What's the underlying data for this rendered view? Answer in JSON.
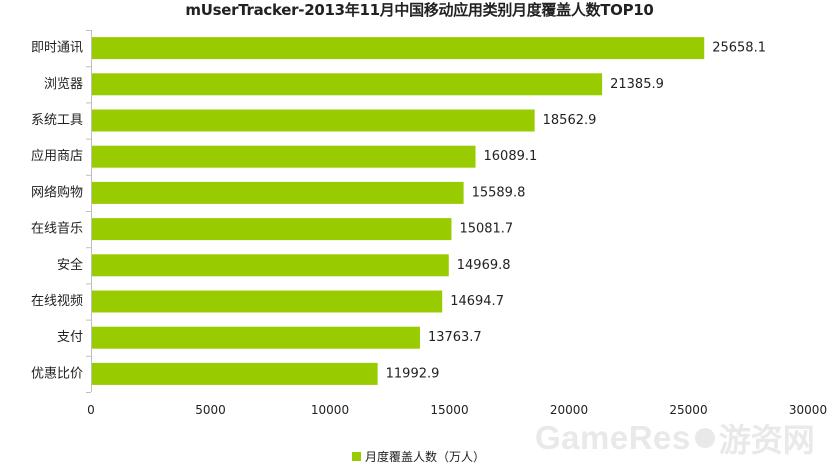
{
  "chart_data": {
    "type": "bar",
    "orientation": "horizontal",
    "title": "mUserTracker-2013年11月中国移动应用类别月度覆盖人数TOP10",
    "categories": [
      "即时通讯",
      "浏览器",
      "系统工具",
      "应用商店",
      "网络购物",
      "在线音乐",
      "安全",
      "在线视频",
      "支付",
      "优惠比价"
    ],
    "values": [
      25658.1,
      21385.9,
      18562.9,
      16089.1,
      15589.8,
      15081.7,
      14969.8,
      14694.7,
      13763.7,
      11992.9
    ],
    "value_labels": [
      "25658.1",
      "21385.9",
      "18562.9",
      "16089.1",
      "15589.8",
      "15081.7",
      "14969.8",
      "14694.7",
      "13763.7",
      "11992.9"
    ],
    "series": [
      {
        "name": "月度覆盖人数（万人）",
        "values": [
          25658.1,
          21385.9,
          18562.9,
          16089.1,
          15589.8,
          15081.7,
          14969.8,
          14694.7,
          13763.7,
          11992.9
        ]
      }
    ],
    "xlim": [
      0,
      30000
    ],
    "x_ticks": [
      0,
      5000,
      10000,
      15000,
      20000,
      25000,
      30000
    ],
    "x_tick_labels": [
      "0",
      "5000",
      "10000",
      "15000",
      "20000",
      "25000",
      "30000"
    ],
    "xlabel": "",
    "ylabel": "",
    "legend_position": "bottom",
    "grid": false,
    "bar_color": "#99cc00"
  },
  "watermark": {
    "brand": "GameRes",
    "cn": "游资网"
  }
}
